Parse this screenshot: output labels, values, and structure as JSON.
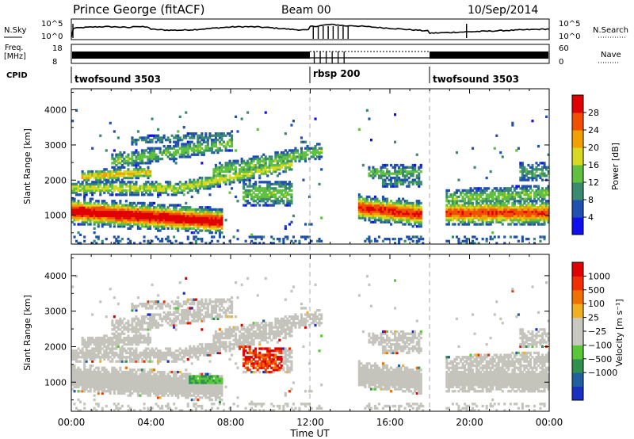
{
  "header": {
    "station": "Prince George (fitACF)",
    "beam": "Beam 00",
    "date": "10/Sep/2014"
  },
  "noise_panel": {
    "left_label": "N.Sky",
    "left_ticks": [
      "10^5",
      "10^0"
    ],
    "right_ticks": [
      "10^5",
      "10^0"
    ],
    "right_label": "N.Search"
  },
  "freq_panel": {
    "left_label_1": "Freq.",
    "left_label_2": "[MHz]",
    "left_ticks": [
      "18",
      "8"
    ],
    "right_ticks": [
      "60",
      "0"
    ],
    "right_label": "Nave"
  },
  "cpid_panel": {
    "label": "CPID",
    "segments": [
      {
        "name": "twofsound 3503",
        "start_h": 0,
        "end_h": 12
      },
      {
        "name": "rbsp 200",
        "start_h": 12,
        "end_h": 18
      },
      {
        "name": "twofsound 3503",
        "start_h": 18,
        "end_h": 24
      }
    ]
  },
  "chart_data": [
    {
      "type": "heatmap",
      "panel": "power",
      "ylabel": "Slant Range [km]",
      "yticks": [
        "1000",
        "2000",
        "3000",
        "4000"
      ],
      "ylim": [
        180,
        4600
      ],
      "xlim": [
        0,
        24
      ],
      "colorbar": {
        "label": "Power [dB]",
        "ticks": [
          "4",
          "8",
          "12",
          "16",
          "20",
          "24",
          "28"
        ],
        "colors": [
          "#1010ee",
          "#2050b0",
          "#3a8a70",
          "#60c040",
          "#d8d820",
          "#f0a000",
          "#f05000",
          "#e00000"
        ]
      }
    },
    {
      "type": "heatmap",
      "panel": "velocity",
      "ylabel": "Slant Range [km]",
      "yticks": [
        "1000",
        "2000",
        "3000",
        "4000"
      ],
      "ylim": [
        180,
        4600
      ],
      "xlim": [
        0,
        24
      ],
      "colorbar": {
        "label": "Velocity [m s⁻¹]",
        "ticks": [
          "1000",
          "500",
          "100",
          "25",
          "−25",
          "−100",
          "−500",
          "−1000"
        ],
        "colors": [
          "#1a30c0",
          "#2060a0",
          "#309050",
          "#58c838",
          "#c8c8c0",
          "#c8c8c0",
          "#f0b020",
          "#f07000",
          "#f03000",
          "#e00000"
        ]
      }
    }
  ],
  "x_axis": {
    "ticks": [
      "00:00",
      "04:00",
      "08:00",
      "12:00",
      "16:00",
      "20:00",
      "00:00"
    ],
    "label": "Time UT"
  },
  "colors": {
    "axis": "#000000",
    "grey_echo": "#c4c4bc",
    "marker_line": "#aaaaaa"
  }
}
